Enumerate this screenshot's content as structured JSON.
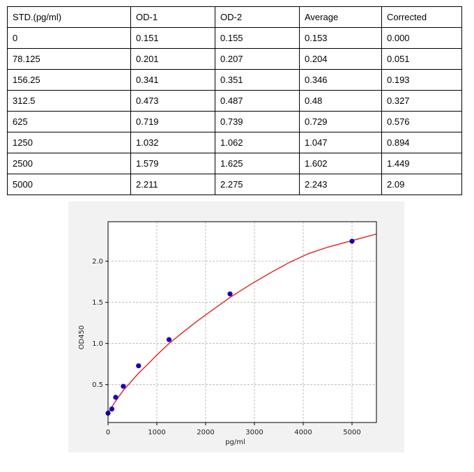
{
  "table": {
    "headers": [
      "STD.(pg/ml)",
      "OD-1",
      "OD-2",
      "Average",
      "Corrected"
    ],
    "rows": [
      [
        "0",
        "0.151",
        "0.155",
        "0.153",
        "0.000"
      ],
      [
        "78.125",
        "0.201",
        "0.207",
        "0.204",
        "0.051"
      ],
      [
        "156.25",
        "0.341",
        "0.351",
        "0.346",
        "0.193"
      ],
      [
        "312.5",
        "0.473",
        "0.487",
        "0.48",
        "0.327"
      ],
      [
        "625",
        "0.719",
        "0.739",
        "0.729",
        "0.576"
      ],
      [
        "1250",
        "1.032",
        "1.062",
        "1.047",
        "0.894"
      ],
      [
        "2500",
        "1.579",
        "1.625",
        "1.602",
        "1.449"
      ],
      [
        "5000",
        "2.211",
        "2.275",
        "2.243",
        "2.09"
      ]
    ]
  },
  "chart_data": {
    "type": "scatter",
    "xlabel": "pg/ml",
    "ylabel": "OD450",
    "xlim": [
      0,
      5500
    ],
    "ylim": [
      0.04,
      2.48
    ],
    "xticks": [
      0,
      1000,
      2000,
      3000,
      4000,
      5000
    ],
    "yticks": [
      0.5,
      1.0,
      1.5,
      2.0
    ],
    "xtick_labels": [
      "0",
      "1000",
      "2000",
      "3000",
      "4000",
      "5000"
    ],
    "ytick_labels": [
      "0.5",
      "1.0",
      "1.5",
      "2.0"
    ],
    "grid": true,
    "points": {
      "x": [
        0,
        78.125,
        156.25,
        312.5,
        625,
        1250,
        2500,
        5000
      ],
      "y": [
        0.153,
        0.204,
        0.346,
        0.48,
        0.729,
        1.047,
        1.602,
        2.243
      ]
    },
    "fit_curve": {
      "x": [
        0,
        50,
        100,
        156.25,
        250,
        312.5,
        450,
        625,
        800,
        1000,
        1250,
        1500,
        1800,
        2100,
        2500,
        2900,
        3300,
        3700,
        4100,
        4500,
        5000,
        5500
      ],
      "y": [
        0.16,
        0.2,
        0.25,
        0.3,
        0.38,
        0.43,
        0.52,
        0.64,
        0.74,
        0.86,
        1.0,
        1.12,
        1.26,
        1.39,
        1.56,
        1.71,
        1.85,
        1.98,
        2.09,
        2.17,
        2.25,
        2.33
      ]
    },
    "colors": {
      "points": "#1a00b3",
      "curve": "#e0312b"
    }
  }
}
